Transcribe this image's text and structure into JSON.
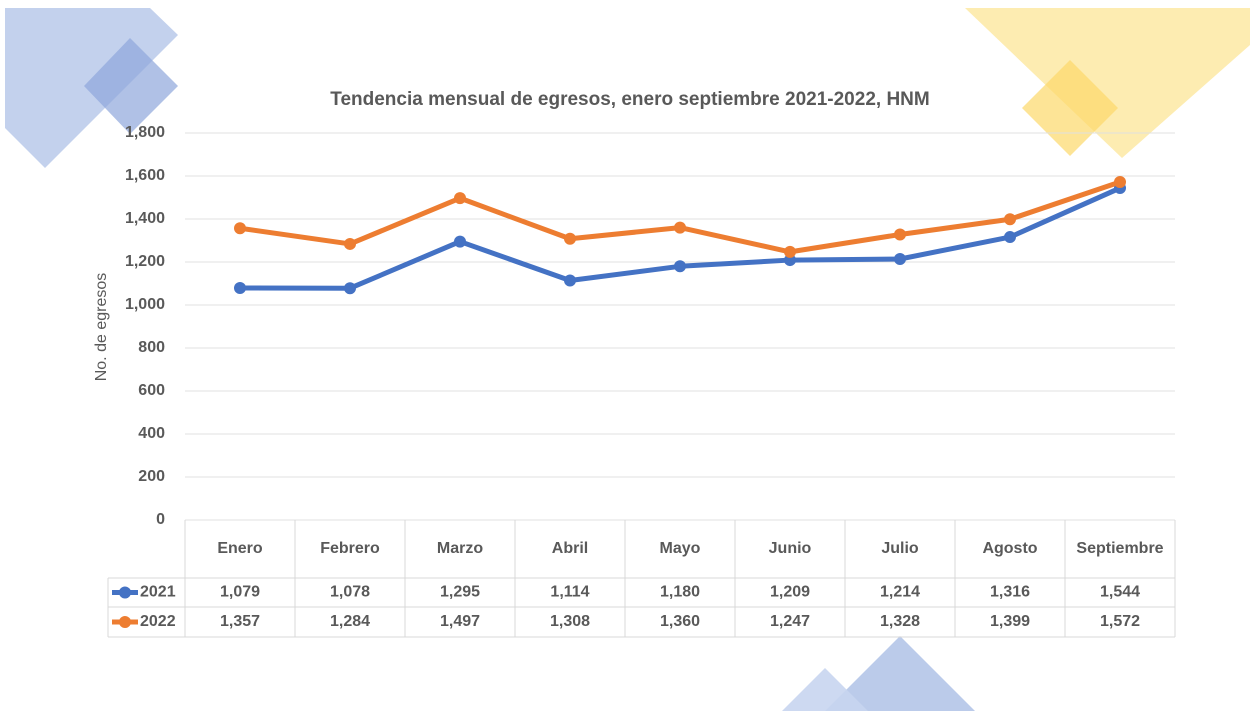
{
  "chart_data": {
    "type": "line",
    "title": "Tendencia mensual de egresos, enero septiembre 2021-2022, HNM",
    "y_label": "No. de egresos",
    "categories": [
      "Enero",
      "Febrero",
      "Marzo",
      "Abril",
      "Mayo",
      "Junio",
      "Julio",
      "Agosto",
      "Septiembre"
    ],
    "series": [
      {
        "name": "2021",
        "color": "#4472c4",
        "values": [
          1079,
          1078,
          1295,
          1114,
          1180,
          1209,
          1214,
          1316,
          1544
        ],
        "value_labels": [
          "1,079",
          "1,078",
          "1,295",
          "1,114",
          "1,180",
          "1,209",
          "1,214",
          "1,316",
          "1,544"
        ]
      },
      {
        "name": "2022",
        "color": "#ed7d31",
        "values": [
          1357,
          1284,
          1497,
          1308,
          1360,
          1247,
          1328,
          1399,
          1572
        ],
        "value_labels": [
          "1,357",
          "1,284",
          "1,497",
          "1,308",
          "1,360",
          "1,247",
          "1,328",
          "1,399",
          "1,572"
        ]
      }
    ],
    "ylim": [
      0,
      1800
    ],
    "yticks": [
      0,
      200,
      400,
      600,
      800,
      {
        "value": 1000,
        "label": "1,000"
      },
      {
        "value": 1200,
        "label": "1,200"
      },
      {
        "value": 1400,
        "label": "1,400"
      },
      {
        "value": 1600,
        "label": "1,600"
      },
      {
        "value": 1800,
        "label": "1,800"
      }
    ],
    "grid": true
  }
}
